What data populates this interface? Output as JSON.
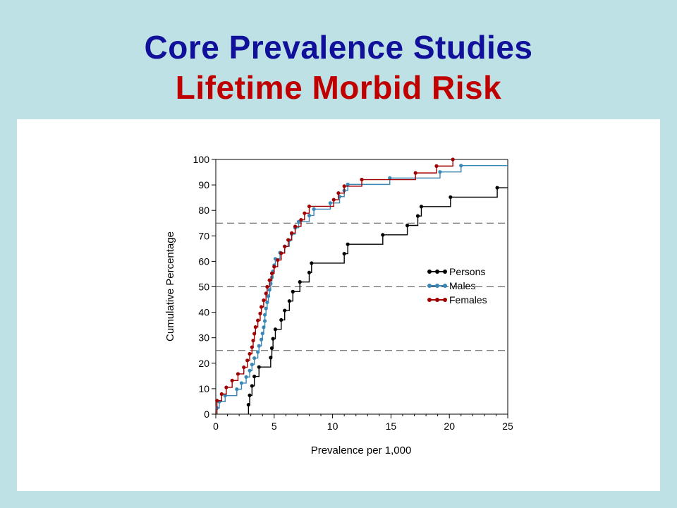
{
  "slide": {
    "title": "Core Prevalence Studies",
    "subtitle": "Lifetime Morbid Risk"
  },
  "chart_data": {
    "type": "line",
    "step": true,
    "xlabel": "Prevalence per 1,000",
    "ylabel": "Cumulative Percentage",
    "xlim": [
      0,
      25
    ],
    "ylim": [
      0,
      100
    ],
    "xticks": [
      "0",
      "5",
      "10",
      "15",
      "20",
      "25"
    ],
    "yticks": [
      "0",
      "10",
      "20",
      "30",
      "40",
      "50",
      "60",
      "70",
      "80",
      "90",
      "100"
    ],
    "reference_lines": [
      25,
      50,
      75
    ],
    "legend_position": "right-center",
    "series": [
      {
        "name": "Persons",
        "color": "#000000",
        "points": [
          [
            2.8,
            3.7
          ],
          [
            2.9,
            7.4
          ],
          [
            3.1,
            11.1
          ],
          [
            3.3,
            14.8
          ],
          [
            3.7,
            18.5
          ],
          [
            4.7,
            22.2
          ],
          [
            4.8,
            25.9
          ],
          [
            4.9,
            29.6
          ],
          [
            5.1,
            33.3
          ],
          [
            5.6,
            37.0
          ],
          [
            5.9,
            40.7
          ],
          [
            6.3,
            44.4
          ],
          [
            6.6,
            48.1
          ],
          [
            7.2,
            51.9
          ],
          [
            8.0,
            55.6
          ],
          [
            8.2,
            59.3
          ],
          [
            11.0,
            63.0
          ],
          [
            11.3,
            66.7
          ],
          [
            14.3,
            70.4
          ],
          [
            16.4,
            74.1
          ],
          [
            17.3,
            77.8
          ],
          [
            17.6,
            81.5
          ],
          [
            20.1,
            85.2
          ],
          [
            24.1,
            88.9
          ]
        ],
        "x_end": 25.0
      },
      {
        "name": "Males",
        "color": "#3a86b4",
        "points": [
          [
            0.1,
            2.4
          ],
          [
            0.3,
            4.9
          ],
          [
            0.8,
            7.3
          ],
          [
            1.8,
            9.8
          ],
          [
            2.2,
            12.2
          ],
          [
            2.6,
            14.6
          ],
          [
            2.9,
            17.1
          ],
          [
            3.1,
            19.5
          ],
          [
            3.3,
            22.0
          ],
          [
            3.6,
            24.4
          ],
          [
            3.7,
            26.8
          ],
          [
            3.9,
            29.3
          ],
          [
            4.0,
            31.7
          ],
          [
            4.1,
            34.1
          ],
          [
            4.2,
            36.6
          ],
          [
            4.2,
            39.0
          ],
          [
            4.3,
            41.5
          ],
          [
            4.4,
            43.9
          ],
          [
            4.5,
            46.3
          ],
          [
            4.6,
            48.8
          ],
          [
            4.7,
            51.2
          ],
          [
            4.8,
            53.7
          ],
          [
            4.9,
            56.1
          ],
          [
            5.0,
            58.5
          ],
          [
            5.1,
            61.0
          ],
          [
            5.5,
            63.4
          ],
          [
            5.9,
            65.9
          ],
          [
            6.3,
            68.3
          ],
          [
            6.5,
            70.7
          ],
          [
            6.8,
            73.2
          ],
          [
            7.1,
            75.6
          ],
          [
            8.0,
            78.0
          ],
          [
            8.4,
            80.5
          ],
          [
            9.8,
            82.9
          ],
          [
            10.6,
            85.4
          ],
          [
            11.0,
            87.8
          ],
          [
            11.3,
            90.2
          ],
          [
            14.9,
            92.7
          ],
          [
            19.2,
            95.1
          ],
          [
            21.0,
            97.6
          ]
        ],
        "x_end": 25.0
      },
      {
        "name": "Females",
        "color": "#a00000",
        "points": [
          [
            0.1,
            5.3
          ],
          [
            0.5,
            7.9
          ],
          [
            0.9,
            10.5
          ],
          [
            1.4,
            13.2
          ],
          [
            1.9,
            15.8
          ],
          [
            2.4,
            18.4
          ],
          [
            2.7,
            21.1
          ],
          [
            2.9,
            23.7
          ],
          [
            3.1,
            26.3
          ],
          [
            3.2,
            28.9
          ],
          [
            3.3,
            31.6
          ],
          [
            3.4,
            34.2
          ],
          [
            3.6,
            36.8
          ],
          [
            3.8,
            39.5
          ],
          [
            3.9,
            42.1
          ],
          [
            4.1,
            44.7
          ],
          [
            4.3,
            47.4
          ],
          [
            4.4,
            50.0
          ],
          [
            4.6,
            52.6
          ],
          [
            4.8,
            55.3
          ],
          [
            5.0,
            57.9
          ],
          [
            5.3,
            60.5
          ],
          [
            5.6,
            63.2
          ],
          [
            5.9,
            65.8
          ],
          [
            6.2,
            68.4
          ],
          [
            6.5,
            71.1
          ],
          [
            6.8,
            73.7
          ],
          [
            7.3,
            76.3
          ],
          [
            7.6,
            78.9
          ],
          [
            8.0,
            81.6
          ],
          [
            10.1,
            84.2
          ],
          [
            10.5,
            86.8
          ],
          [
            11.0,
            89.5
          ],
          [
            12.5,
            92.1
          ],
          [
            17.1,
            94.7
          ],
          [
            18.9,
            97.4
          ],
          [
            20.3,
            100.0
          ]
        ],
        "x_end": 20.3
      }
    ]
  }
}
